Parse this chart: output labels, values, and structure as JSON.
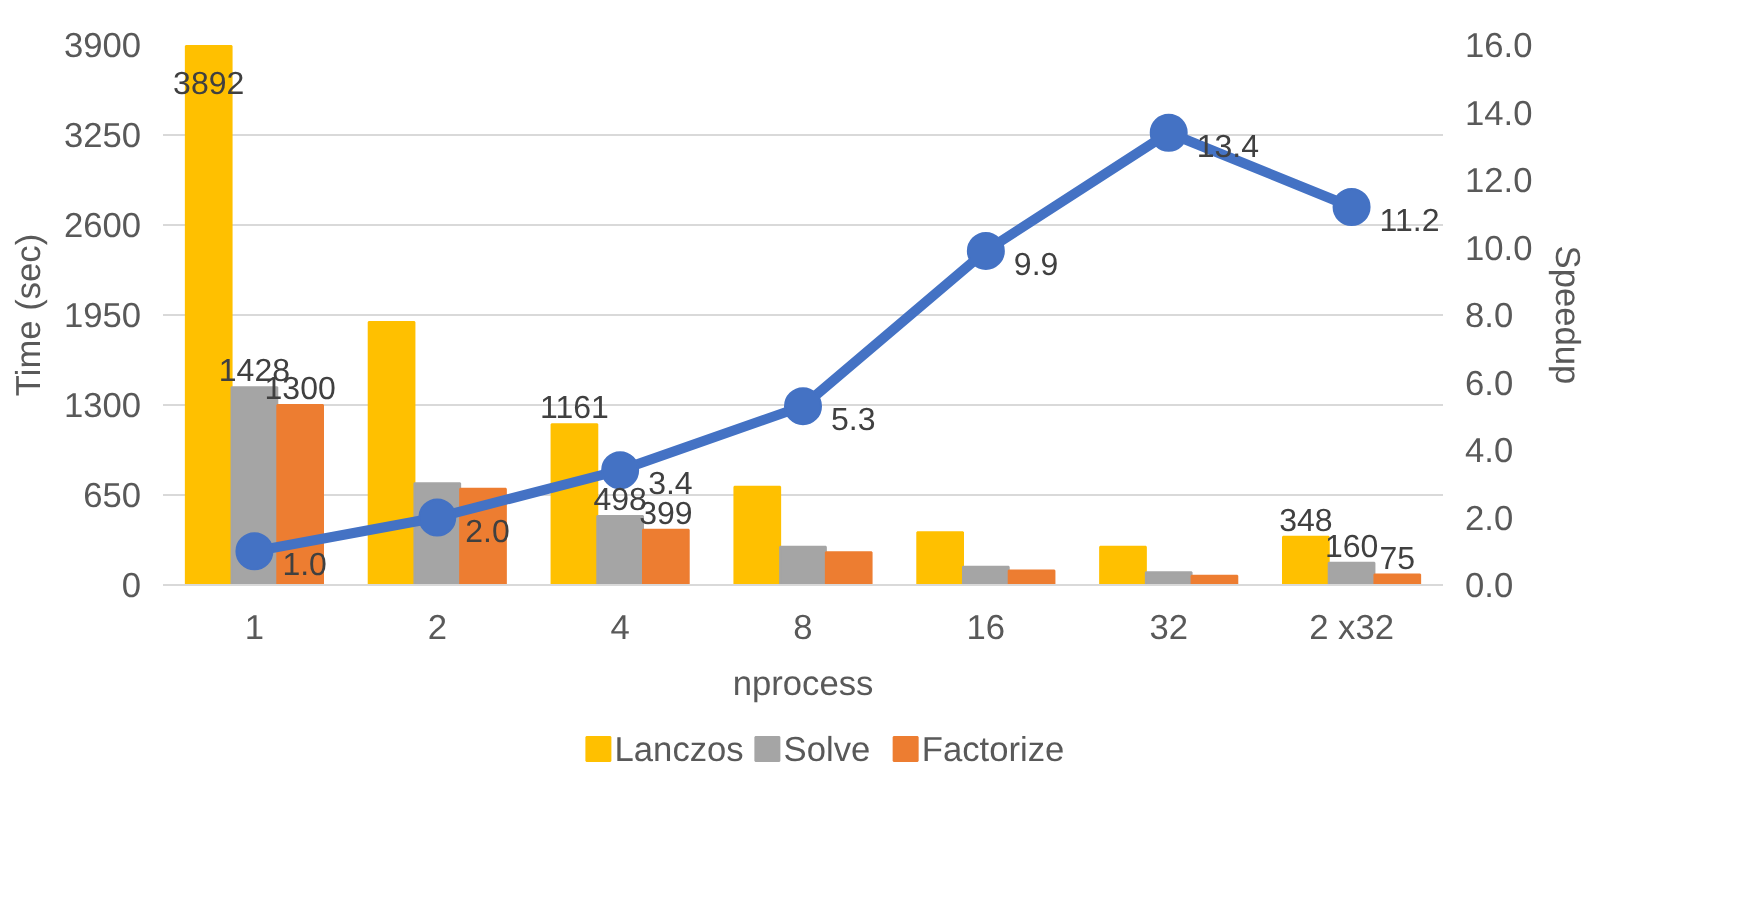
{
  "chart_data": {
    "type": "bar",
    "xlabel": "nprocess",
    "ylabel": "Time (sec)",
    "y2label": "Speedup",
    "categories": [
      "1",
      "2",
      "4",
      "8",
      "16",
      "32",
      "2 x32"
    ],
    "series": [
      {
        "name": "Lanczos",
        "color": "#ffc000",
        "values": [
          3892,
          1900,
          1161,
          709,
          381,
          276,
          348
        ],
        "value_labels": [
          "3892",
          null,
          "1161",
          null,
          null,
          null,
          "348"
        ]
      },
      {
        "name": "Solve",
        "color": "#a5a5a5",
        "values": [
          1428,
          735,
          498,
          276,
          131,
          92,
          160
        ],
        "value_labels": [
          "1428",
          null,
          "498",
          null,
          null,
          null,
          "160"
        ]
      },
      {
        "name": "Factorize",
        "color": "#ed7d31",
        "values": [
          1300,
          696,
          399,
          236,
          105,
          66,
          75
        ],
        "value_labels": [
          "1300",
          null,
          "399",
          null,
          null,
          null,
          "75"
        ]
      },
      {
        "type": "line",
        "axis": "y2",
        "color": "#4472c4",
        "marker": "circle",
        "values": [
          1.0,
          2.0,
          3.4,
          5.3,
          9.9,
          13.4,
          11.2
        ],
        "value_labels": [
          "1.0",
          "2.0",
          "3.4",
          "5.3",
          "9.9",
          "13.4",
          "11.2"
        ]
      }
    ],
    "ylim": [
      0,
      3900
    ],
    "yticks": [
      0,
      650,
      1300,
      1950,
      2600,
      3250,
      3900
    ],
    "y2lim": [
      0,
      16
    ],
    "y2ticks": [
      {
        "value": 0,
        "label": "0.0"
      },
      {
        "value": 2,
        "label": "2.0"
      },
      {
        "value": 4,
        "label": "4.0"
      },
      {
        "value": 6,
        "label": "6.0"
      },
      {
        "value": 8,
        "label": "8.0"
      },
      {
        "value": 10,
        "label": "10.0"
      },
      {
        "value": 12,
        "label": "12.0"
      },
      {
        "value": 14,
        "label": "14.0"
      },
      {
        "value": 16,
        "label": "16.0"
      }
    ],
    "grid": "y",
    "legend": "bottom"
  }
}
